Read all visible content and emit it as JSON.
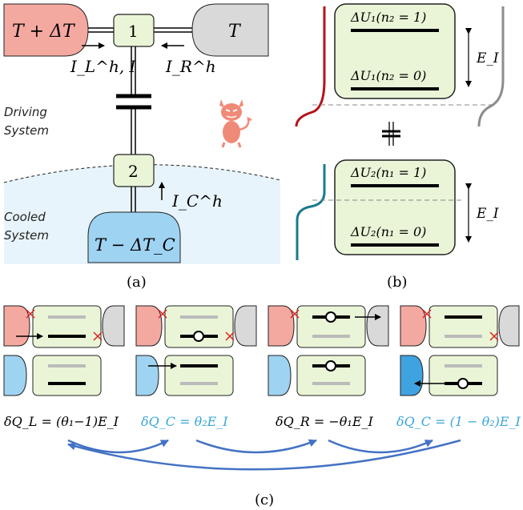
{
  "panel_a": {
    "hot_reservoir": "T + ΔT",
    "cold_reservoir": "T",
    "node_1": "1",
    "node_2": "2",
    "current_left": "I_L^h, I",
    "current_right": "I_R^h",
    "current_cooled": "I_C^h",
    "driving_system_line1": "Driving",
    "driving_system_line2": "System",
    "cooled_system_line1": "Cooled",
    "cooled_system_line2": "System",
    "cooled_reservoir": "T − ΔT_C",
    "caption": "(a)",
    "colors": {
      "hot": "#f4a9a0",
      "cold": "#d9d9d9",
      "cooled": "#9fd3f2",
      "cooled_bg": "#e8f4fc",
      "node": "#eaf5d7",
      "demon": "#f08a78"
    }
  },
  "panel_b": {
    "level_1_upper": "ΔU₁(n₂ = 1)",
    "level_1_lower": "ΔU₁(n₂ = 0)",
    "level_2_upper": "ΔU₂(n₁ = 1)",
    "level_2_lower": "ΔU₂(n₁ = 0)",
    "energy_label_top": "E_I",
    "energy_label_bottom": "E_I",
    "caption": "(b)",
    "colors": {
      "left_curve": "#b5121b",
      "right_curve": "#8c8c8c",
      "teal_curve": "#1a7a8c"
    }
  },
  "panel_c": {
    "heat_L": "δQ_L = (θ₁−1)E_I",
    "heat_C1": "δQ_C = θ₂E_I",
    "heat_R": "δQ_R = −θ₁E_I",
    "heat_C2": "δQ_C = (1 − θ₂)E_I",
    "caption": "(c)",
    "colors": {
      "blue_text": "#3aa6d8",
      "arrow": "#4472c4",
      "cross": "#e02020"
    }
  }
}
